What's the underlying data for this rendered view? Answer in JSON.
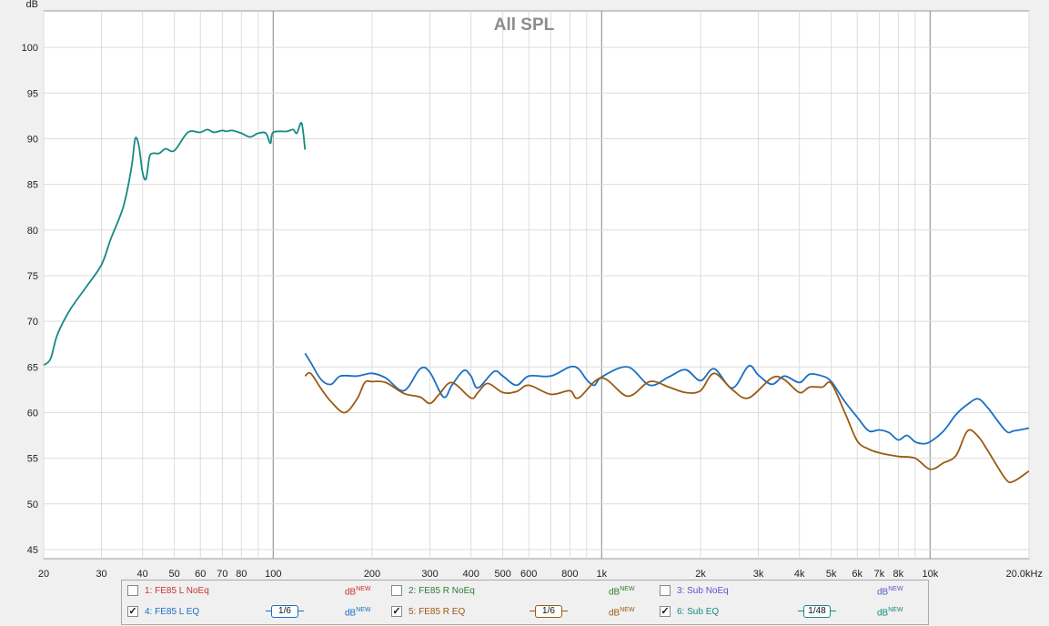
{
  "chart_data": {
    "type": "line",
    "title": "All SPL",
    "ylabel": "dB",
    "xlabel": "",
    "x_scale": "log",
    "xlim": [
      20,
      20000
    ],
    "ylim": [
      44,
      104
    ],
    "grid": true,
    "y_ticks": [
      "45",
      "50",
      "55",
      "60",
      "65",
      "70",
      "75",
      "80",
      "85",
      "90",
      "95",
      "100"
    ],
    "x_ticks": [
      {
        "v": 20,
        "l": "20"
      },
      {
        "v": 30,
        "l": "30"
      },
      {
        "v": 40,
        "l": "40"
      },
      {
        "v": 50,
        "l": "50"
      },
      {
        "v": 60,
        "l": "60"
      },
      {
        "v": 70,
        "l": "70"
      },
      {
        "v": 80,
        "l": "80"
      },
      {
        "v": 100,
        "l": "100"
      },
      {
        "v": 200,
        "l": "200"
      },
      {
        "v": 300,
        "l": "300"
      },
      {
        "v": 400,
        "l": "400"
      },
      {
        "v": 500,
        "l": "500"
      },
      {
        "v": 600,
        "l": "600"
      },
      {
        "v": 800,
        "l": "800"
      },
      {
        "v": 1000,
        "l": "1k"
      },
      {
        "v": 2000,
        "l": "2k"
      },
      {
        "v": 3000,
        "l": "3k"
      },
      {
        "v": 4000,
        "l": "4k"
      },
      {
        "v": 5000,
        "l": "5k"
      },
      {
        "v": 6000,
        "l": "6k"
      },
      {
        "v": 7000,
        "l": "7k"
      },
      {
        "v": 8000,
        "l": "8k"
      },
      {
        "v": 10000,
        "l": "10k"
      },
      {
        "v": 20000,
        "l": "20.0kHz"
      }
    ],
    "series": [
      {
        "name": "6: Sub EQ",
        "color": "#168a84",
        "points": [
          [
            20,
            65.2
          ],
          [
            21,
            65.9
          ],
          [
            22,
            68.5
          ],
          [
            24,
            71.2
          ],
          [
            27,
            73.8
          ],
          [
            30,
            76.2
          ],
          [
            32,
            79.0
          ],
          [
            35,
            82.6
          ],
          [
            37,
            86.8
          ],
          [
            38,
            90.0
          ],
          [
            39,
            89.2
          ],
          [
            40,
            86.3
          ],
          [
            41,
            85.6
          ],
          [
            42,
            88.0
          ],
          [
            43,
            88.4
          ],
          [
            45,
            88.4
          ],
          [
            47,
            88.9
          ],
          [
            50,
            88.7
          ],
          [
            55,
            90.7
          ],
          [
            60,
            90.7
          ],
          [
            63,
            91.0
          ],
          [
            66,
            90.7
          ],
          [
            70,
            90.9
          ],
          [
            72,
            90.8
          ],
          [
            75,
            90.9
          ],
          [
            80,
            90.6
          ],
          [
            85,
            90.2
          ],
          [
            90,
            90.6
          ],
          [
            95,
            90.6
          ],
          [
            98,
            89.5
          ],
          [
            100,
            90.7
          ],
          [
            110,
            90.8
          ],
          [
            115,
            91.0
          ],
          [
            118,
            90.6
          ],
          [
            122,
            91.7
          ],
          [
            125,
            88.8
          ]
        ]
      },
      {
        "name": "4: FE85 L EQ",
        "color": "#1a6fc4",
        "points": [
          [
            125,
            66.5
          ],
          [
            130,
            65.5
          ],
          [
            140,
            63.6
          ],
          [
            150,
            63.1
          ],
          [
            160,
            64.0
          ],
          [
            180,
            64.0
          ],
          [
            200,
            64.3
          ],
          [
            220,
            63.8
          ],
          [
            250,
            62.4
          ],
          [
            280,
            64.8
          ],
          [
            300,
            64.4
          ],
          [
            330,
            61.7
          ],
          [
            350,
            63.0
          ],
          [
            380,
            64.6
          ],
          [
            400,
            64.0
          ],
          [
            420,
            62.7
          ],
          [
            470,
            64.5
          ],
          [
            500,
            64.0
          ],
          [
            550,
            63.0
          ],
          [
            600,
            64.0
          ],
          [
            700,
            64.0
          ],
          [
            800,
            65.0
          ],
          [
            850,
            64.8
          ],
          [
            900,
            63.6
          ],
          [
            950,
            63.0
          ],
          [
            1000,
            63.9
          ],
          [
            1200,
            65.0
          ],
          [
            1400,
            63.0
          ],
          [
            1600,
            63.9
          ],
          [
            1800,
            64.7
          ],
          [
            2000,
            63.5
          ],
          [
            2200,
            64.8
          ],
          [
            2500,
            62.7
          ],
          [
            2800,
            65.1
          ],
          [
            3000,
            64.1
          ],
          [
            3300,
            63.1
          ],
          [
            3600,
            64.0
          ],
          [
            4000,
            63.3
          ],
          [
            4300,
            64.2
          ],
          [
            4700,
            64.0
          ],
          [
            5000,
            63.4
          ],
          [
            5500,
            61.2
          ],
          [
            6000,
            59.5
          ],
          [
            6500,
            58.0
          ],
          [
            7000,
            58.1
          ],
          [
            7500,
            57.8
          ],
          [
            8000,
            57.0
          ],
          [
            8500,
            57.5
          ],
          [
            9000,
            56.8
          ],
          [
            9500,
            56.6
          ],
          [
            10000,
            56.8
          ],
          [
            11000,
            58.0
          ],
          [
            12000,
            59.8
          ],
          [
            13000,
            60.9
          ],
          [
            14000,
            61.5
          ],
          [
            15000,
            60.5
          ],
          [
            17000,
            58.0
          ],
          [
            18000,
            58.0
          ],
          [
            20000,
            58.3
          ]
        ]
      },
      {
        "name": "5: FE85 R EQ",
        "color": "#9a5a12",
        "points": [
          [
            125,
            64.0
          ],
          [
            130,
            64.3
          ],
          [
            140,
            62.6
          ],
          [
            150,
            61.2
          ],
          [
            165,
            60.0
          ],
          [
            180,
            61.5
          ],
          [
            190,
            63.3
          ],
          [
            200,
            63.4
          ],
          [
            220,
            63.3
          ],
          [
            250,
            62.1
          ],
          [
            280,
            61.7
          ],
          [
            300,
            61.0
          ],
          [
            320,
            62.0
          ],
          [
            350,
            63.3
          ],
          [
            400,
            61.6
          ],
          [
            420,
            62.2
          ],
          [
            450,
            63.2
          ],
          [
            500,
            62.2
          ],
          [
            550,
            62.3
          ],
          [
            600,
            63.0
          ],
          [
            700,
            62.0
          ],
          [
            800,
            62.4
          ],
          [
            850,
            61.6
          ],
          [
            1000,
            63.8
          ],
          [
            1200,
            61.8
          ],
          [
            1400,
            63.4
          ],
          [
            1600,
            62.8
          ],
          [
            1800,
            62.2
          ],
          [
            2000,
            62.4
          ],
          [
            2200,
            64.3
          ],
          [
            2500,
            62.5
          ],
          [
            2800,
            61.6
          ],
          [
            3300,
            63.8
          ],
          [
            3600,
            63.6
          ],
          [
            4000,
            62.2
          ],
          [
            4300,
            62.8
          ],
          [
            4700,
            62.8
          ],
          [
            5000,
            63.2
          ],
          [
            5500,
            60.0
          ],
          [
            6000,
            56.9
          ],
          [
            6500,
            56.0
          ],
          [
            7000,
            55.6
          ],
          [
            8000,
            55.2
          ],
          [
            9000,
            55.0
          ],
          [
            10000,
            53.8
          ],
          [
            11000,
            54.5
          ],
          [
            12000,
            55.3
          ],
          [
            13000,
            58.0
          ],
          [
            14000,
            57.4
          ],
          [
            15000,
            55.8
          ],
          [
            17000,
            52.7
          ],
          [
            18000,
            52.5
          ],
          [
            20000,
            53.6
          ]
        ]
      }
    ]
  },
  "legend": {
    "items": [
      {
        "name": "1: FE85 L NoEq",
        "checked": false,
        "color": "#c83232",
        "unit": "dB",
        "sup": "NEW",
        "smoothing": ""
      },
      {
        "name": "2: FE85 R NoEq",
        "checked": false,
        "color": "#2e7d32",
        "unit": "dB",
        "sup": "NEW",
        "smoothing": ""
      },
      {
        "name": "3: Sub NoEq",
        "checked": false,
        "color": "#5b55d0",
        "unit": "dB",
        "sup": "NEW",
        "smoothing": ""
      },
      {
        "name": "4: FE85 L EQ",
        "checked": true,
        "color": "#1a6fc4",
        "unit": "dB",
        "sup": "NEW",
        "smoothing": "1/6"
      },
      {
        "name": "5: FE85 R EQ",
        "checked": true,
        "color": "#9a5a12",
        "unit": "dB",
        "sup": "NEW",
        "smoothing": "1/6"
      },
      {
        "name": "6: Sub EQ",
        "checked": true,
        "color": "#168a84",
        "unit": "dB",
        "sup": "NEW",
        "smoothing": "1/48"
      }
    ]
  }
}
